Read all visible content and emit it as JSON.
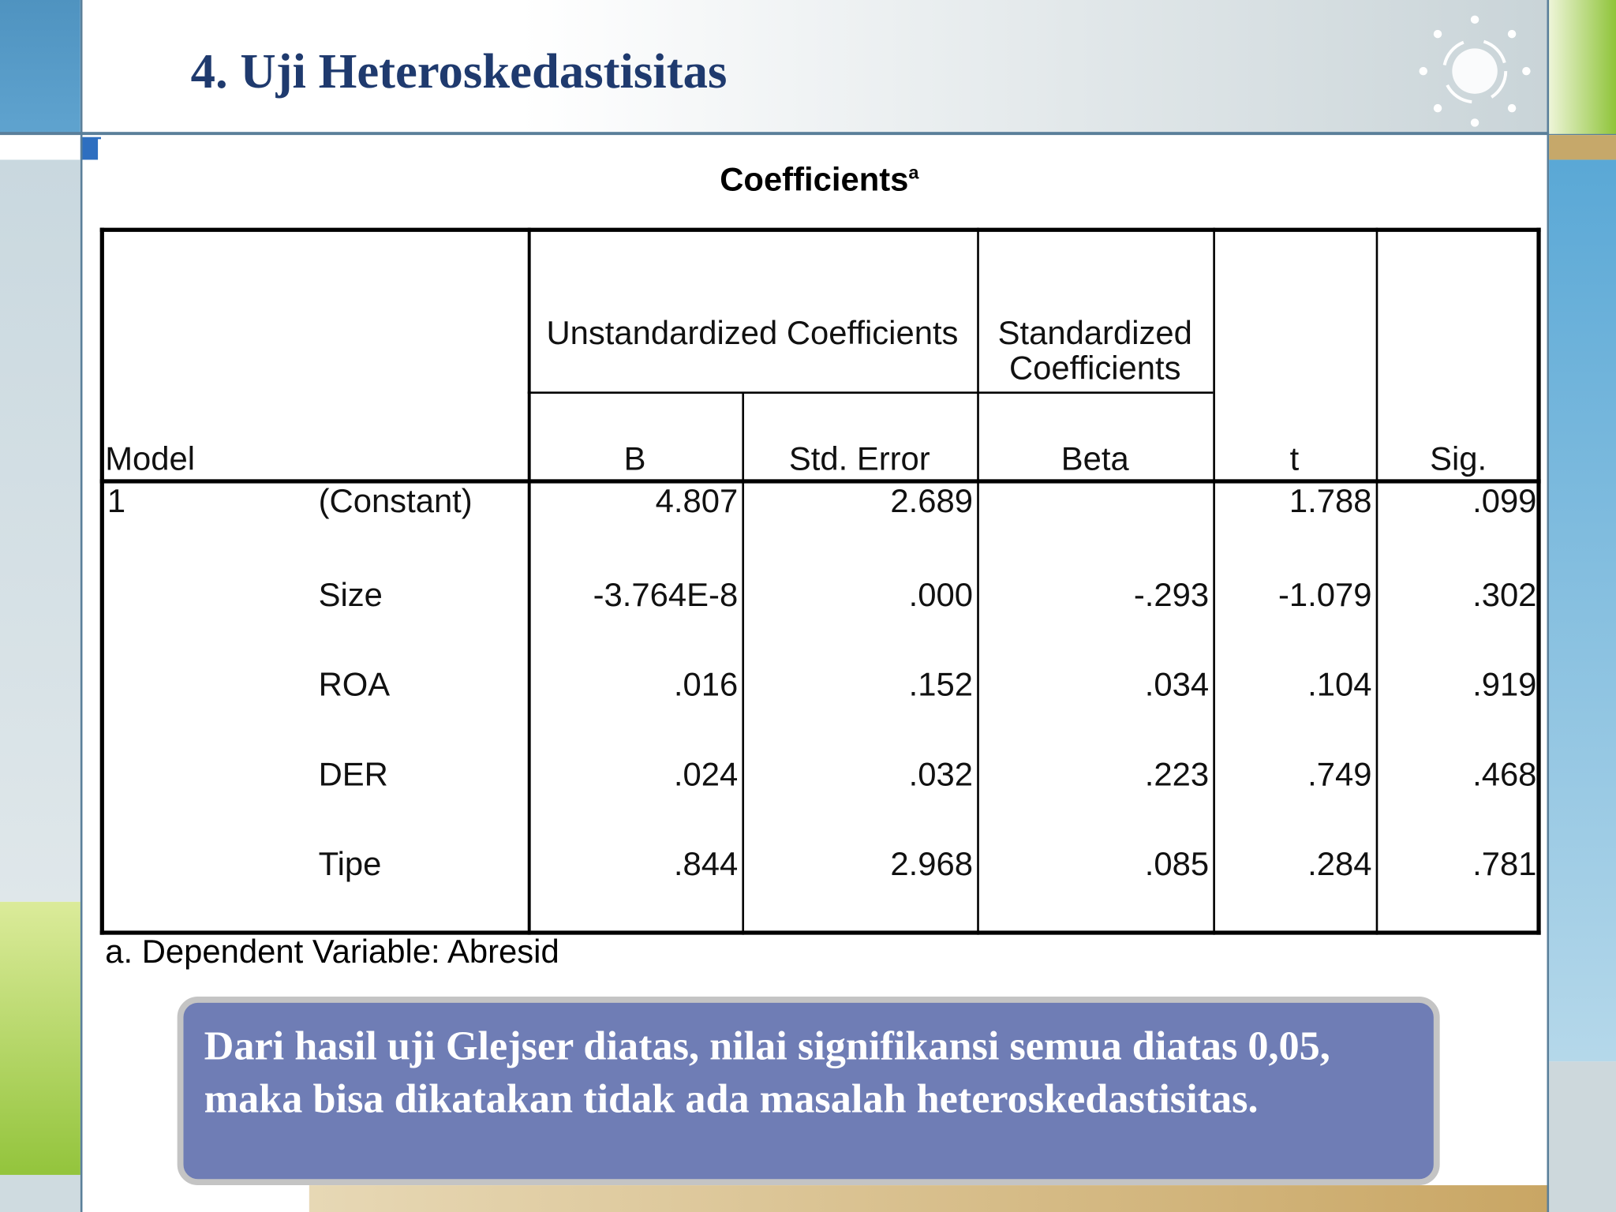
{
  "slide": {
    "title": "4. Uji Heteroskedastisitas",
    "table": {
      "caption": "Coefficients",
      "caption_sup": "a",
      "header": {
        "model": "Model",
        "unstandardized": "Unstandardized Coefficients",
        "standardized": "Standardized Coefficients",
        "b": "B",
        "std_error": "Std. Error",
        "beta": "Beta",
        "t": "t",
        "sig": "Sig."
      },
      "rows": [
        [
          "1",
          "(Constant)",
          "4.807",
          "2.689",
          null,
          "1.788",
          ".099"
        ],
        [
          null,
          "Size",
          "-3.764E-8",
          ".000",
          "-.293",
          "-1.079",
          ".302"
        ],
        [
          null,
          "ROA",
          ".016",
          ".152",
          ".034",
          ".104",
          ".919"
        ],
        [
          null,
          "DER",
          ".024",
          ".032",
          ".223",
          ".749",
          ".468"
        ],
        [
          null,
          "Tipe",
          ".844",
          "2.968",
          ".085",
          ".284",
          ".781"
        ]
      ],
      "footnote": "a. Dependent Variable: Abresid"
    },
    "callout": "Dari hasil uji Glejser diatas, nilai signifikansi semua diatas 0,05, maka bisa dikatakan tidak ada masalah heteroskedastisitas."
  }
}
